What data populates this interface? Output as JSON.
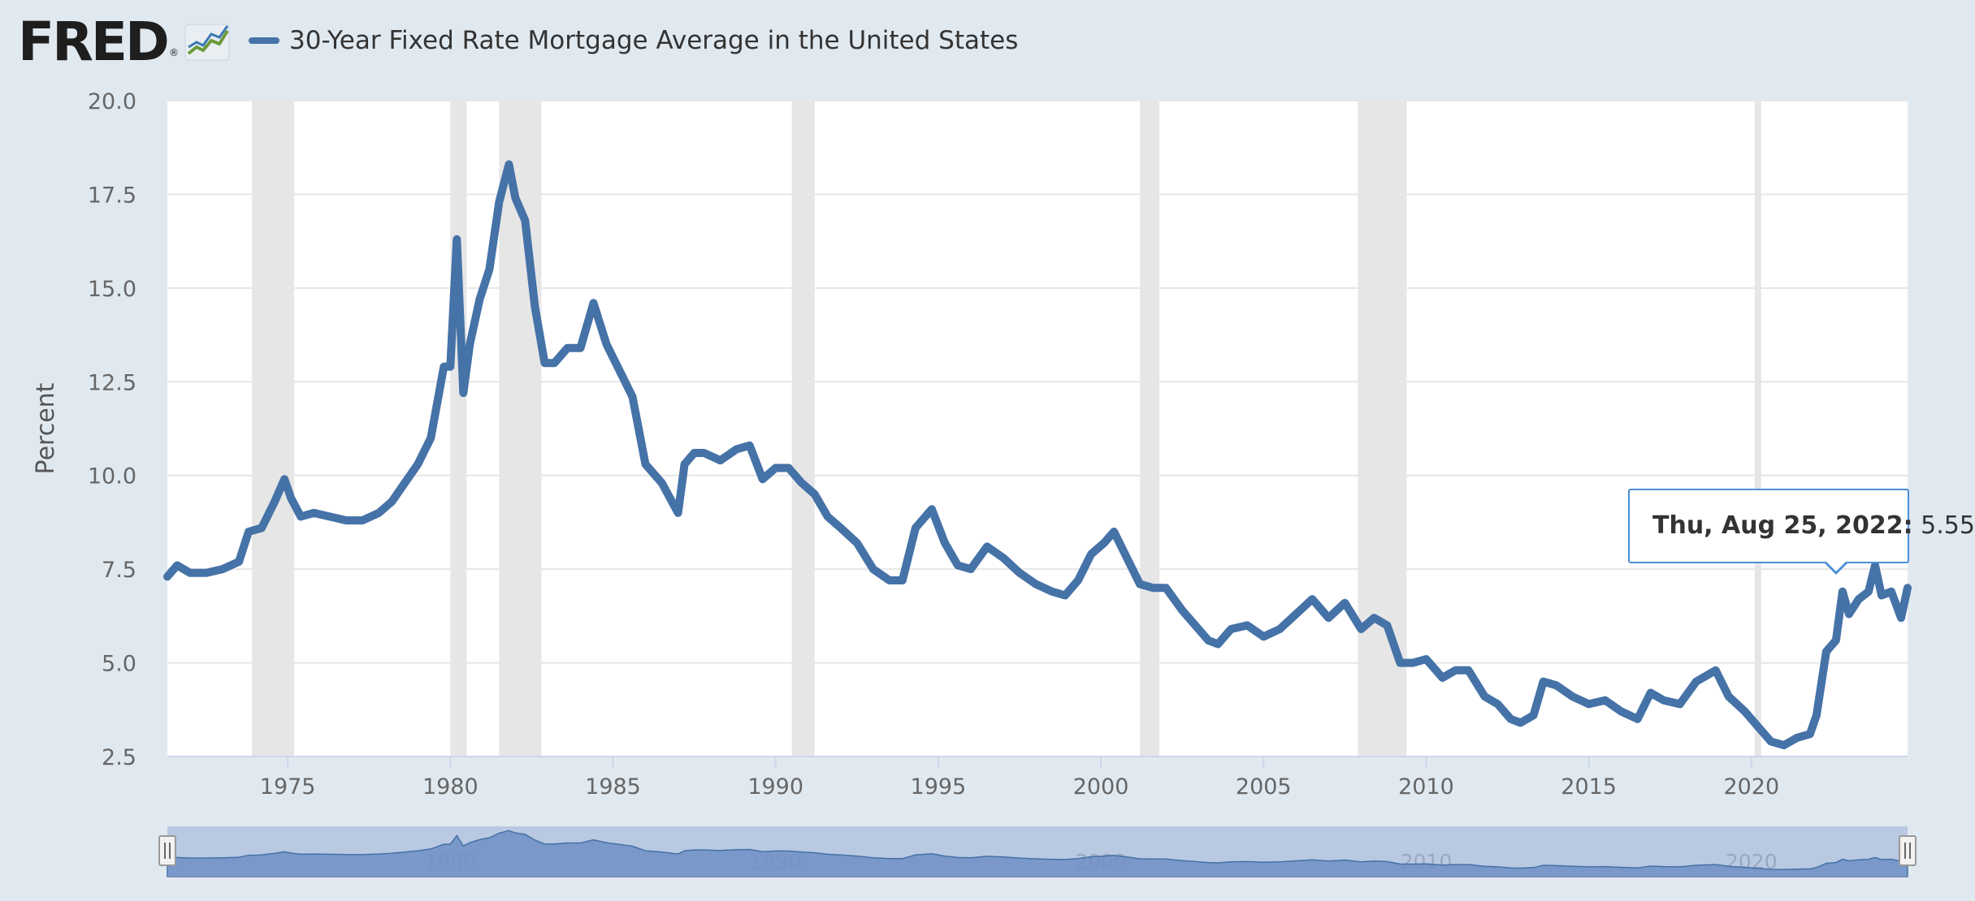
{
  "header": {
    "logo_text": "FRED",
    "logo_reg": "®",
    "legend_label": "30-Year Fixed Rate Mortgage Average in the United States"
  },
  "colors": {
    "series": "#4572a7",
    "recession": "#e6e6e6",
    "grid": "#e6e6e6",
    "navigator": "#b5c6e0",
    "tooltip_border": "#4a8fd8"
  },
  "chart_data": {
    "type": "line",
    "title": "30-Year Fixed Rate Mortgage Average in the United States",
    "ylabel": "Percent",
    "xlabel": "",
    "xlim": [
      1971.3,
      2024.8
    ],
    "ylim": [
      2.5,
      20.0
    ],
    "yticks": [
      2.5,
      5.0,
      7.5,
      10.0,
      12.5,
      15.0,
      17.5,
      20.0
    ],
    "yticklabels": [
      "2.5",
      "5.0",
      "7.5",
      "10.0",
      "12.5",
      "15.0",
      "17.5",
      "20.0"
    ],
    "xticks": [
      1975,
      1980,
      1985,
      1990,
      1995,
      2000,
      2005,
      2010,
      2015,
      2020
    ],
    "xticklabels": [
      "1975",
      "1980",
      "1985",
      "1990",
      "1995",
      "2000",
      "2005",
      "2010",
      "2015",
      "2020"
    ],
    "navigator_ticks": [
      "1980",
      "1990",
      "2000",
      "2010",
      "2020"
    ],
    "recessions": [
      [
        1973.9,
        1975.2
      ],
      [
        1980.0,
        1980.5
      ],
      [
        1981.5,
        1982.8
      ],
      [
        1990.5,
        1991.2
      ],
      [
        2001.2,
        2001.8
      ],
      [
        2007.9,
        2009.4
      ],
      [
        2020.1,
        2020.3
      ]
    ],
    "series": [
      {
        "name": "30-Year Fixed Rate Mortgage Average in the United States",
        "x": [
          1971.3,
          1971.6,
          1972.0,
          1972.5,
          1973.0,
          1973.5,
          1973.8,
          1974.2,
          1974.6,
          1974.9,
          1975.1,
          1975.4,
          1975.8,
          1976.3,
          1976.8,
          1977.3,
          1977.8,
          1978.2,
          1978.6,
          1979.0,
          1979.4,
          1979.8,
          1980.0,
          1980.2,
          1980.4,
          1980.6,
          1980.9,
          1981.2,
          1981.5,
          1981.8,
          1982.0,
          1982.3,
          1982.6,
          1982.9,
          1983.2,
          1983.6,
          1984.0,
          1984.4,
          1984.8,
          1985.2,
          1985.6,
          1986.0,
          1986.5,
          1987.0,
          1987.2,
          1987.5,
          1987.8,
          1988.3,
          1988.8,
          1989.2,
          1989.6,
          1990.0,
          1990.4,
          1990.8,
          1991.2,
          1991.6,
          1992.0,
          1992.5,
          1993.0,
          1993.5,
          1993.9,
          1994.3,
          1994.8,
          1995.2,
          1995.6,
          1996.0,
          1996.5,
          1997.0,
          1997.5,
          1998.0,
          1998.5,
          1998.9,
          1999.3,
          1999.7,
          2000.1,
          2000.4,
          2000.8,
          2001.2,
          2001.6,
          2002.0,
          2002.5,
          2002.9,
          2003.3,
          2003.6,
          2004.0,
          2004.5,
          2005.0,
          2005.5,
          2006.0,
          2006.5,
          2007.0,
          2007.5,
          2008.0,
          2008.4,
          2008.8,
          2009.2,
          2009.6,
          2010.0,
          2010.5,
          2010.9,
          2011.3,
          2011.8,
          2012.2,
          2012.6,
          2012.9,
          2013.3,
          2013.6,
          2014.0,
          2014.5,
          2015.0,
          2015.5,
          2016.0,
          2016.5,
          2016.9,
          2017.3,
          2017.8,
          2018.3,
          2018.9,
          2019.3,
          2019.8,
          2020.2,
          2020.6,
          2021.0,
          2021.4,
          2021.8,
          2022.0,
          2022.3,
          2022.6,
          2022.8,
          2023.0,
          2023.3,
          2023.6,
          2023.8,
          2024.0,
          2024.3,
          2024.6,
          2024.8
        ],
        "values": [
          7.3,
          7.6,
          7.4,
          7.4,
          7.5,
          7.7,
          8.5,
          8.6,
          9.3,
          9.9,
          9.4,
          8.9,
          9.0,
          8.9,
          8.8,
          8.8,
          9.0,
          9.3,
          9.8,
          10.3,
          11.0,
          12.9,
          12.9,
          16.3,
          12.2,
          13.5,
          14.7,
          15.5,
          17.3,
          18.3,
          17.4,
          16.8,
          14.5,
          13.0,
          13.0,
          13.4,
          13.4,
          14.6,
          13.5,
          12.8,
          12.1,
          10.3,
          9.8,
          9.0,
          10.3,
          10.6,
          10.6,
          10.4,
          10.7,
          10.8,
          9.9,
          10.2,
          10.2,
          9.8,
          9.5,
          8.9,
          8.6,
          8.2,
          7.5,
          7.2,
          7.2,
          8.6,
          9.1,
          8.2,
          7.6,
          7.5,
          8.1,
          7.8,
          7.4,
          7.1,
          6.9,
          6.8,
          7.2,
          7.9,
          8.2,
          8.5,
          7.8,
          7.1,
          7.0,
          7.0,
          6.4,
          6.0,
          5.6,
          5.5,
          5.9,
          6.0,
          5.7,
          5.9,
          6.3,
          6.7,
          6.2,
          6.6,
          5.9,
          6.2,
          6.0,
          5.0,
          5.0,
          5.1,
          4.6,
          4.8,
          4.8,
          4.1,
          3.9,
          3.5,
          3.4,
          3.6,
          4.5,
          4.4,
          4.1,
          3.9,
          4.0,
          3.7,
          3.5,
          4.2,
          4.0,
          3.9,
          4.5,
          4.8,
          4.1,
          3.7,
          3.3,
          2.9,
          2.8,
          3.0,
          3.1,
          3.6,
          5.3,
          5.6,
          6.9,
          6.3,
          6.7,
          6.9,
          7.6,
          6.8,
          6.9,
          6.2,
          7.0
        ]
      }
    ],
    "tooltip": {
      "date": "Thu, Aug 25, 2022:",
      "value": "5.55"
    }
  }
}
